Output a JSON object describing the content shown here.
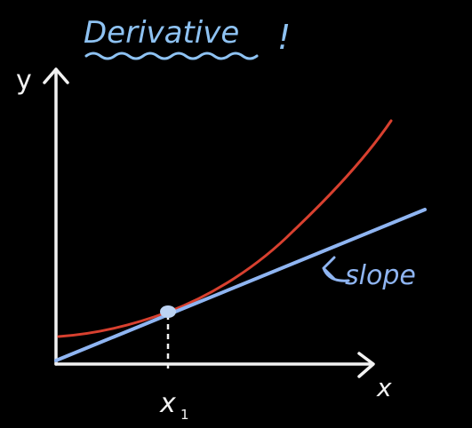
{
  "title": "Derivative",
  "exclamation": "!",
  "axes": {
    "y_label": "y",
    "x_label": "x"
  },
  "annotation": {
    "slope_label": "slope"
  },
  "point": {
    "label_base": "x",
    "label_sub": "1"
  },
  "colors": {
    "background": "#000000",
    "axes": "#f2f2f2",
    "title": "#8ec2f2",
    "curve": "#d8402f",
    "tangent": "#8fb5f2",
    "point": "#bcd3f3"
  }
}
